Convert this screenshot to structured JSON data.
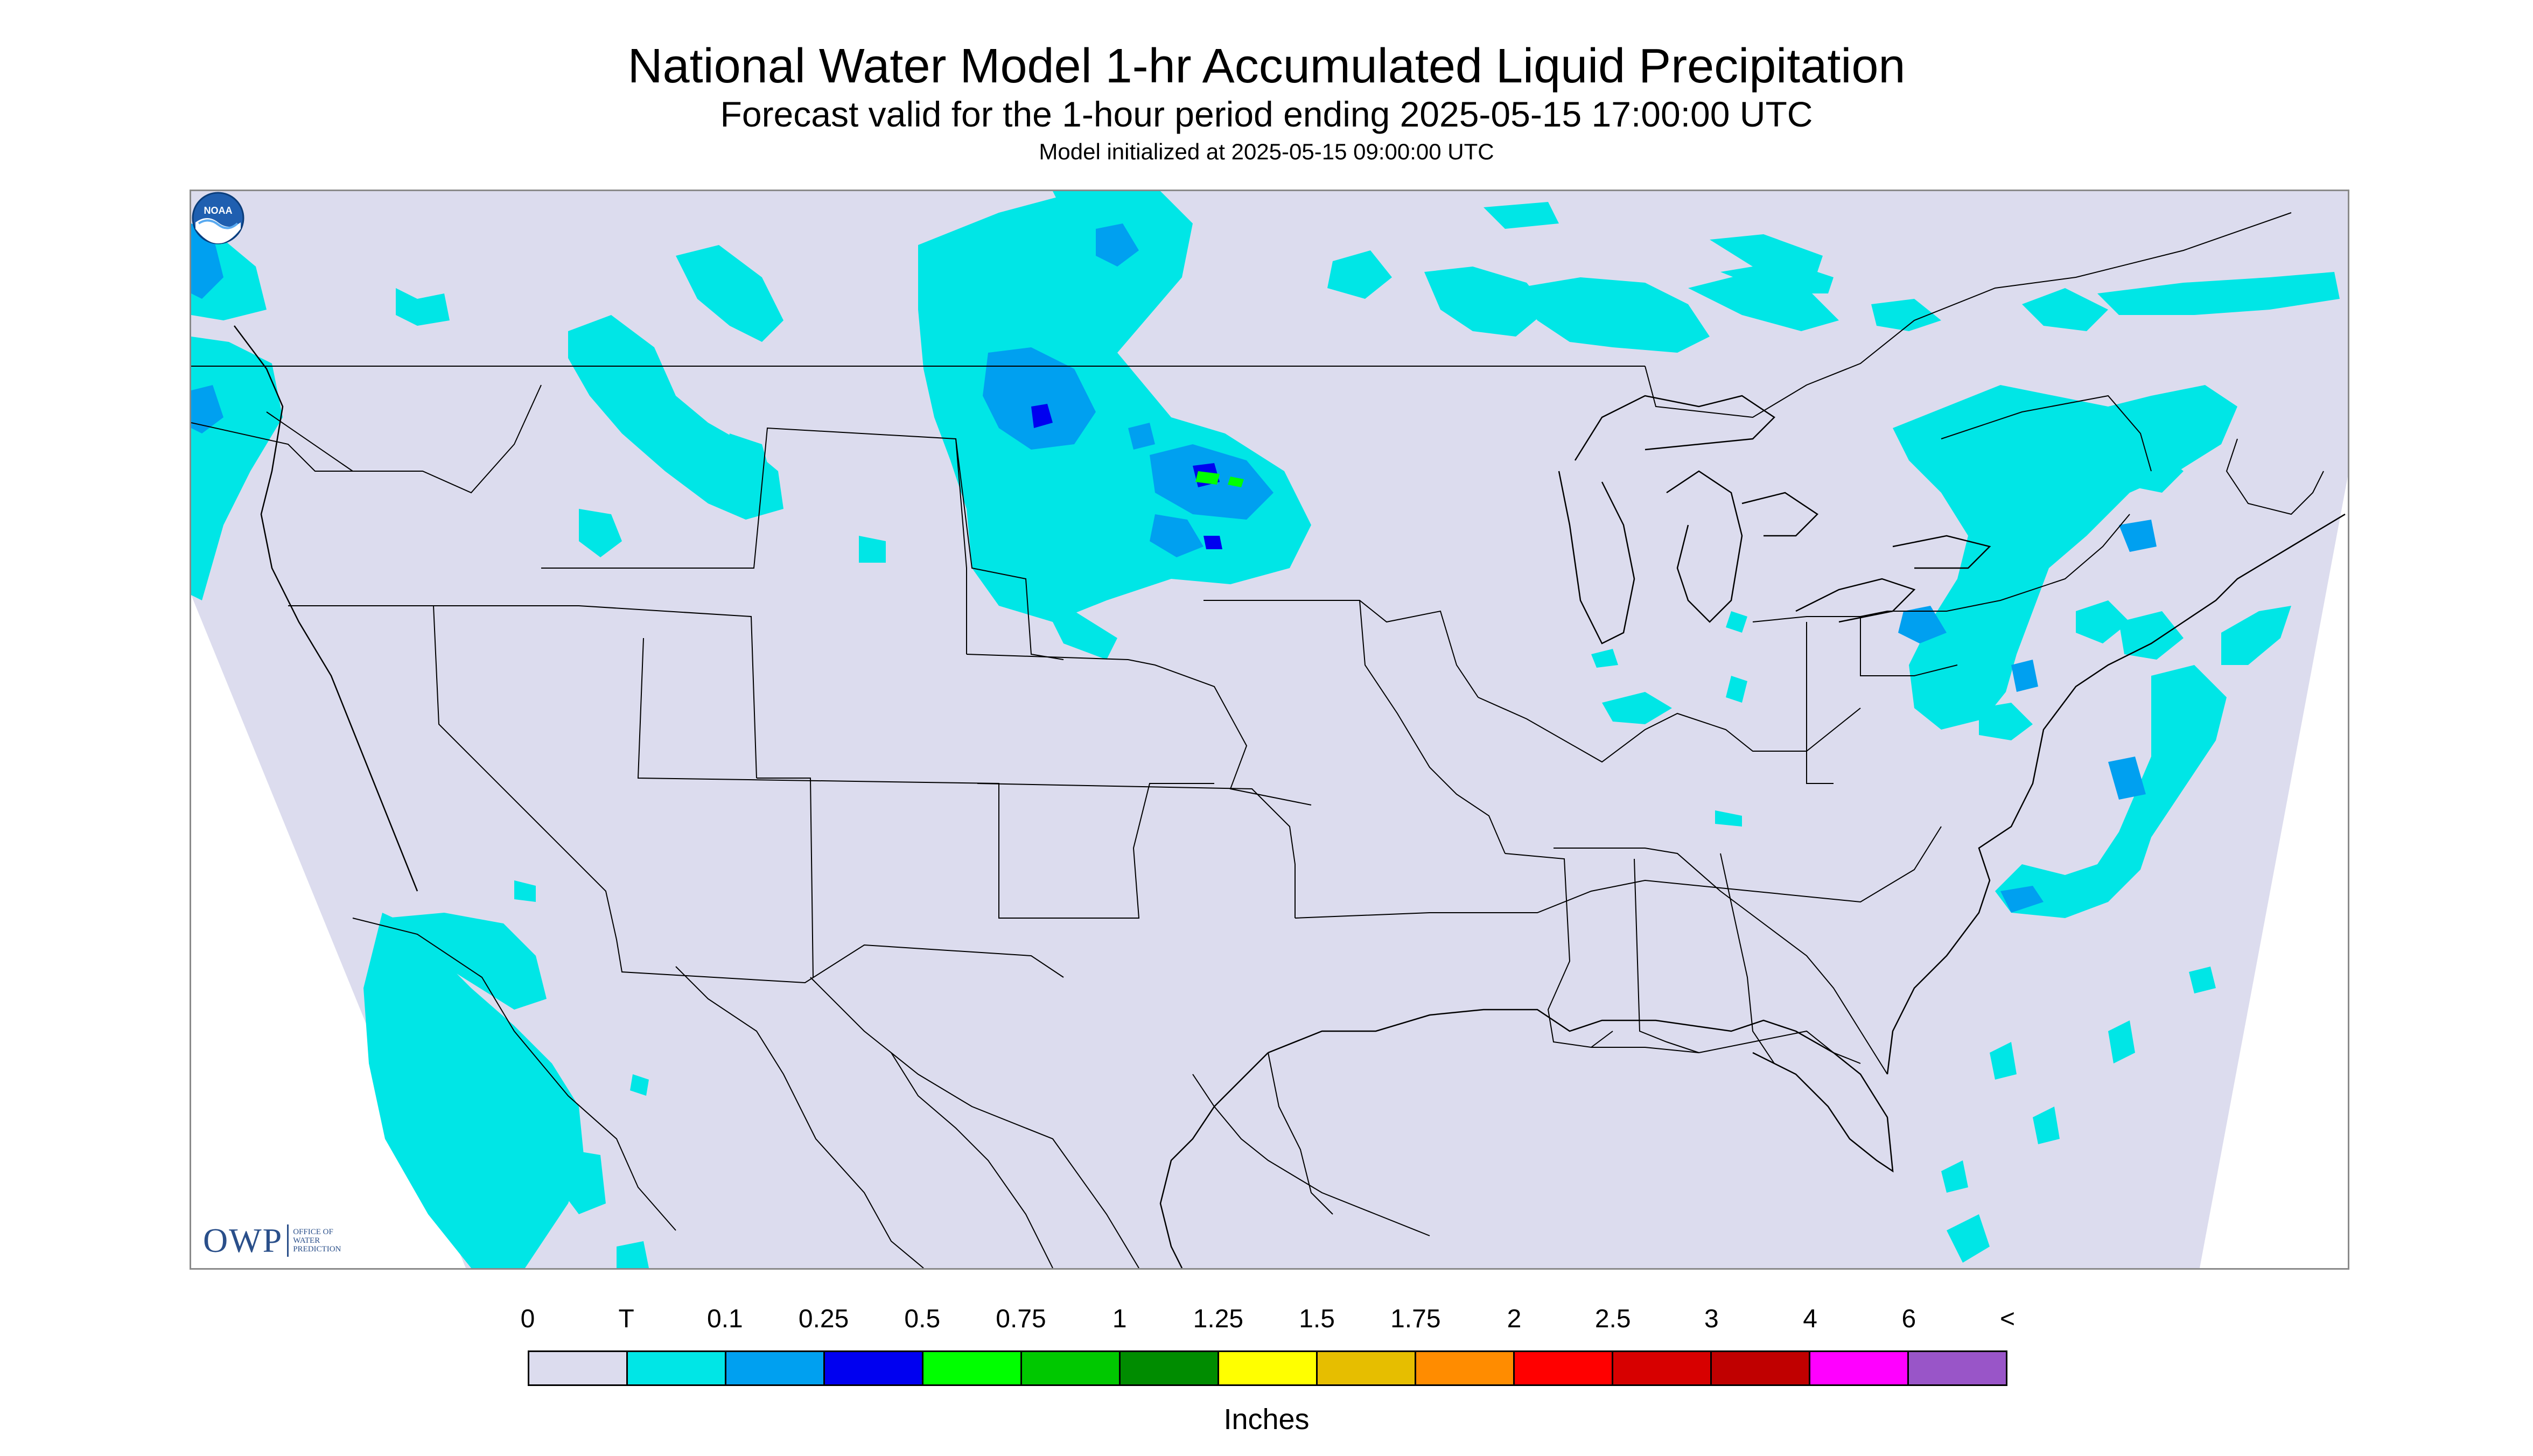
{
  "header": {
    "title": "National Water Model 1-hr Accumulated Liquid Precipitation",
    "subtitle": "Forecast valid for the 1-hour period ending 2025-05-15 17:00:00 UTC",
    "init": "Model initialized at 2025-05-15 09:00:00 UTC"
  },
  "logos": {
    "owp_mark": "OWP",
    "owp_line1": "OFFICE OF",
    "owp_line2": "WATER",
    "owp_line3": "PREDICTION",
    "noaa_text": "NOAA"
  },
  "map": {
    "domain_fill": "#dcdcee",
    "boundary_color": "#000000",
    "projection": "lambert-conformal-conus",
    "precip_colors": {
      "trace": "#00e6e6",
      "p01": "#00a0f0",
      "p025": "#0000f0",
      "p05": "#00ff00",
      "p075": "#00c800"
    }
  },
  "legend": {
    "labels": [
      "0",
      "T",
      "0.1",
      "0.25",
      "0.5",
      "0.75",
      "1",
      "1.25",
      "1.5",
      "1.75",
      "2",
      "2.5",
      "3",
      "4",
      "6",
      "<"
    ],
    "colors": [
      "#dcdcee",
      "#00e6e6",
      "#00a0f0",
      "#0000f0",
      "#00ff00",
      "#00c800",
      "#008c00",
      "#ffff00",
      "#e6be00",
      "#ff8c00",
      "#ff0000",
      "#d70000",
      "#c00000",
      "#ff00ff",
      "#9955c8"
    ],
    "units": "Inches"
  }
}
